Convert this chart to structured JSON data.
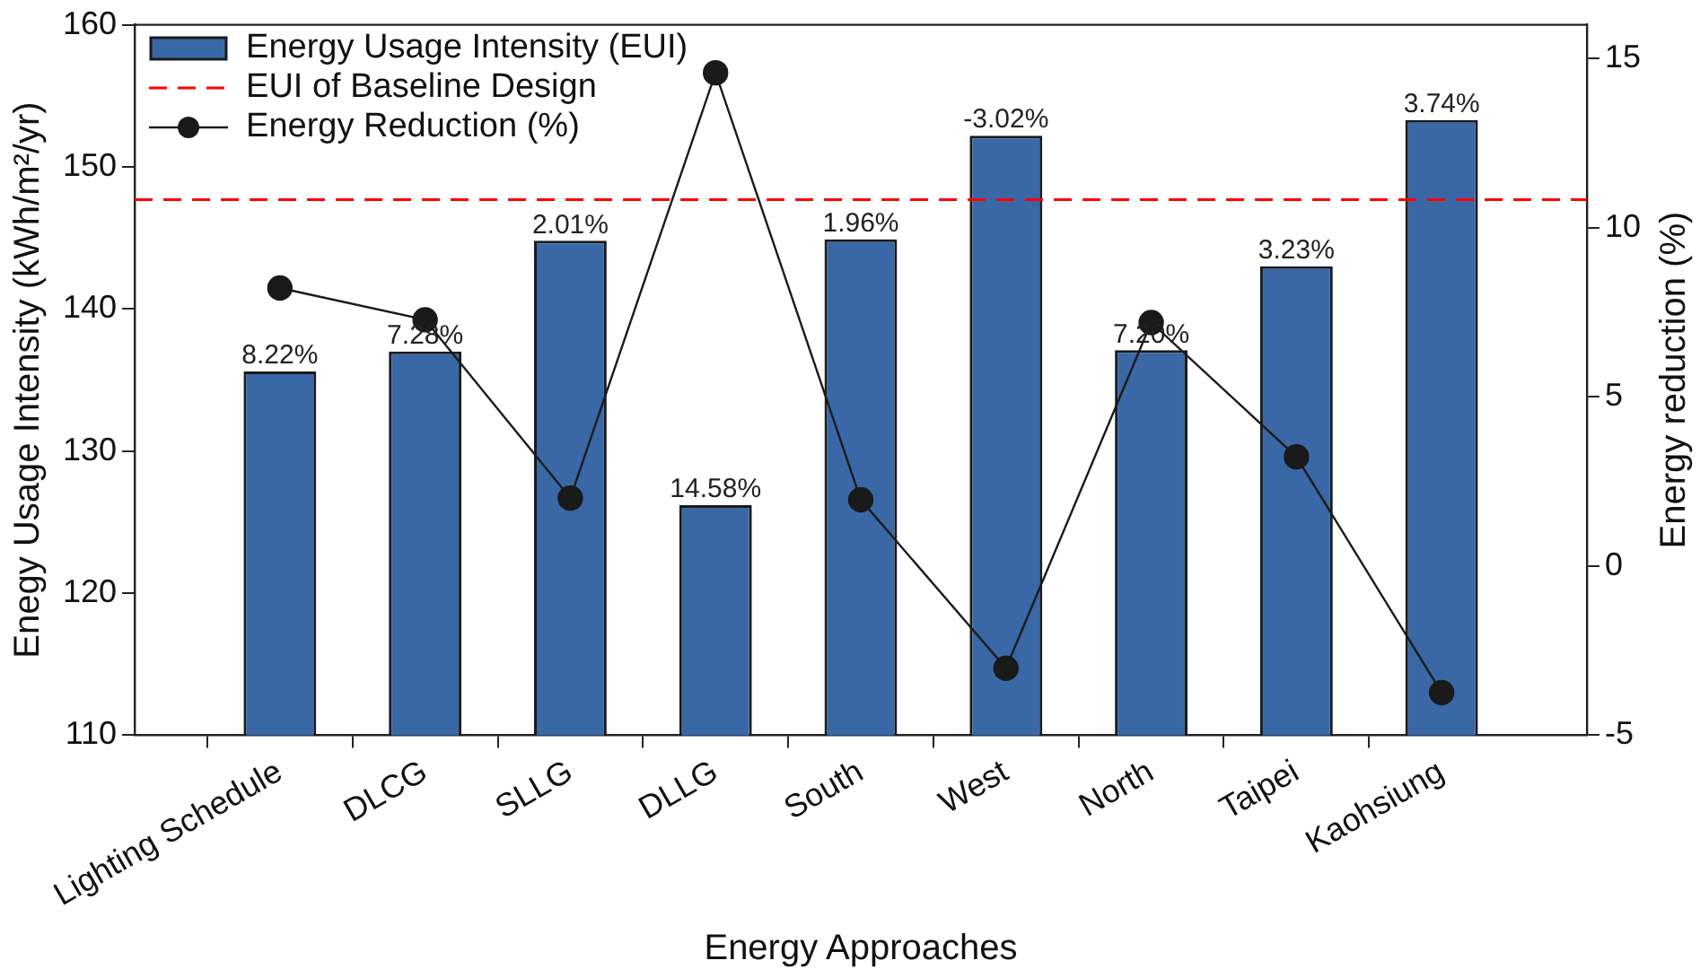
{
  "chart_data": {
    "type": "bar",
    "xlabel": "Energy Approaches",
    "ylabel": "Enegy Usage Intensity (kWh/m²/yr)",
    "y2label": "Energy reduction (%)",
    "categories": [
      "Lighting Schedule",
      "DLCG",
      "SLLG",
      "DLLG",
      "South",
      "West",
      "North",
      "Taipei",
      "Kaohsiung"
    ],
    "series": [
      {
        "name": "Energy Usage Intensity (EUI)",
        "color": "#3a68a6",
        "values": [
          135.6,
          137.0,
          144.8,
          126.2,
          144.9,
          152.2,
          137.1,
          143.0,
          153.3
        ]
      },
      {
        "name": "Energy Reduction (%)",
        "type": "line",
        "axis": "y2",
        "color": "#1a1a1a",
        "values": [
          8.22,
          7.28,
          2.01,
          14.58,
          1.96,
          -3.02,
          7.2,
          3.23,
          -3.74
        ]
      }
    ],
    "ylim": [
      110,
      160
    ],
    "yticks": [
      110,
      120,
      130,
      140,
      150,
      160
    ],
    "y2lim": [
      -5,
      16
    ],
    "y2ticks": [
      -5,
      0,
      5,
      10,
      15
    ],
    "ref_lines": [
      {
        "axis": "y",
        "value": 147.7,
        "label": "EUI of Baseline Design",
        "color": "#ff0000",
        "line_style": "dashed"
      }
    ],
    "annotations": [
      {
        "text": "8.22%",
        "x": "Lighting Schedule",
        "y": 135.6
      },
      {
        "text": "7.28%",
        "x": "DLCG",
        "y": 137.0
      },
      {
        "text": "2.01%",
        "x": "SLLG",
        "y": 144.8
      },
      {
        "text": "14.58%",
        "x": "DLLG",
        "y": 126.2
      },
      {
        "text": "1.96%",
        "x": "South",
        "y": 144.9
      },
      {
        "text": "-3.02%",
        "x": "West",
        "y": 152.2
      },
      {
        "text": "7.20%",
        "x": "North",
        "y": 137.1
      },
      {
        "text": "3.23%",
        "x": "Taipei",
        "y": 143.0
      },
      {
        "text": "3.74%",
        "x": "Kaohsiung",
        "y": 153.3
      }
    ],
    "marker": "circle",
    "legend": "top left",
    "grid": false
  }
}
